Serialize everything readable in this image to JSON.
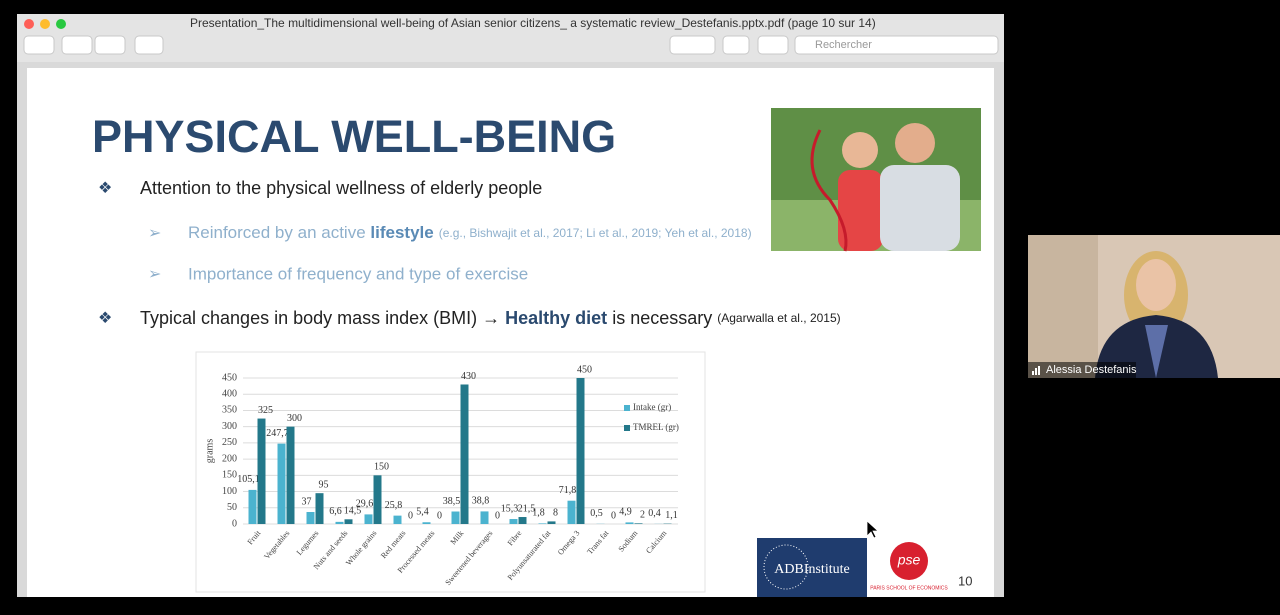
{
  "window": {
    "title": "Presentation_The multidimensional well-being of Asian senior citizens_ a systematic review_Destefanis.pptx.pdf (page 10 sur 14)",
    "search_placeholder": "Rechercher"
  },
  "slide": {
    "title": "PHYSICAL WELL-BEING",
    "bullet_marker": "❖",
    "sub_marker": "➢",
    "bullet1": "Attention to the physical wellness of elderly people",
    "sub1_pre": "Reinforced by an active ",
    "sub1_bold": "lifestyle",
    "sub1_cite": "(e.g., Bishwajit et al., 2017; Li et al., 2019; Yeh et al., 2018)",
    "sub2": "Importance of frequency and type of exercise",
    "bullet2_pre": "Typical changes in body mass index (BMI) → ",
    "bullet2_bold": "Healthy diet",
    "bullet2_post": " is necessary ",
    "bullet2_cite": "(Agarwalla et al., 2015)",
    "page_number": "10",
    "logo_adbi": "ADBInstitute",
    "logo_pse": "pse",
    "logo_pse_caption": "PARIS SCHOOL OF ECONOMICS"
  },
  "participant": {
    "name": "Alessia Destefanis"
  },
  "chart_data": {
    "type": "bar",
    "y_label": "grams",
    "categories": [
      "Fruit",
      "Vegetables",
      "Legumes",
      "Nuts and seeds",
      "Whole grains",
      "Red meats",
      "Processed meats",
      "Milk",
      "Sweetened beverages",
      "Fibre",
      "Polyunsaturated fat",
      "Omega 3",
      "Trans fat",
      "Sodium",
      "Calcium"
    ],
    "series": [
      {
        "name": "Intake (gr)",
        "color": "#4bb3cf",
        "values": [
          105.1,
          247.7,
          37,
          6.6,
          29.6,
          25.8,
          5.4,
          38.5,
          38.8,
          15.3,
          1.8,
          71.8,
          0.5,
          4.9,
          0.4
        ],
        "value_labels": [
          "105,1",
          "247,7",
          "37",
          "6,6",
          "29,6",
          "25,8",
          "5,4",
          "38,5",
          "38,8",
          "15,3",
          "1,8",
          "71,8",
          "0,5",
          "4,9",
          "0,4"
        ]
      },
      {
        "name": "TMREL (gr)",
        "color": "#23788a",
        "values": [
          325,
          300,
          95,
          14.5,
          150,
          0,
          0,
          430,
          0,
          21.5,
          8,
          450,
          0,
          2,
          1.1
        ],
        "value_labels": [
          "325",
          "300",
          "95",
          "14,5",
          "150",
          "0",
          "0",
          "430",
          "0",
          "21,5",
          "8",
          "450",
          "0",
          "2",
          "1,1"
        ]
      }
    ],
    "ylim": [
      0,
      450
    ],
    "yticks": [
      0,
      50,
      100,
      150,
      200,
      250,
      300,
      350,
      400,
      450
    ],
    "grid": true
  }
}
